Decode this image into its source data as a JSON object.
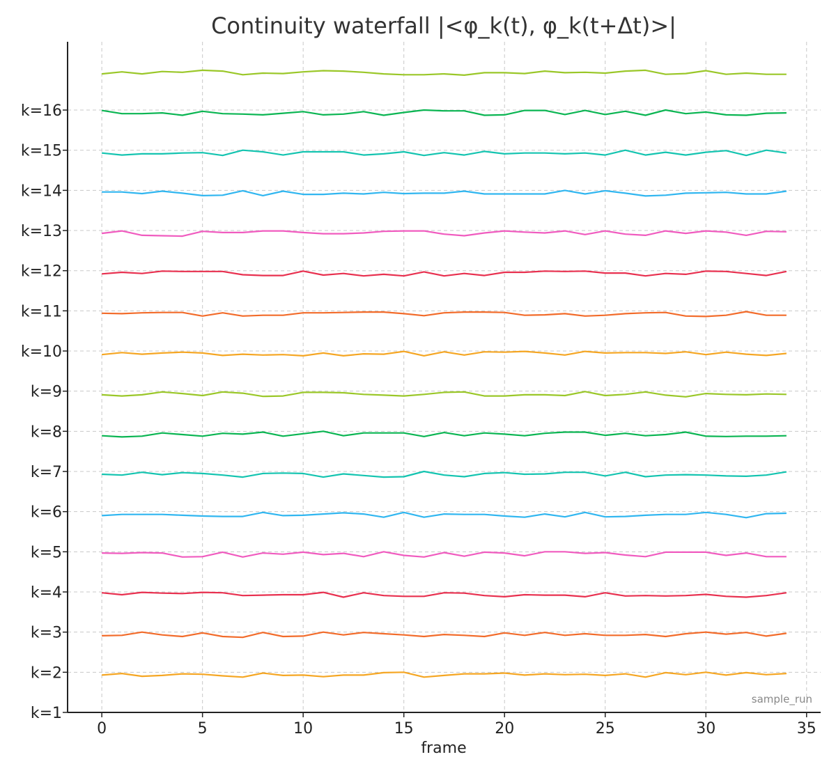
{
  "chart_data": {
    "type": "line",
    "title": "Continuity waterfall |<φ_k(t), φ_k(t+Δt)>|",
    "xlabel": "frame",
    "ylabel": "",
    "xlim": [
      -1.7,
      35.7
    ],
    "ylim": [
      1,
      17.7
    ],
    "x_ticks": [
      0,
      5,
      10,
      15,
      20,
      25,
      30,
      35
    ],
    "x_tick_labels": [
      "0",
      "5",
      "10",
      "15",
      "20",
      "25",
      "30",
      "35"
    ],
    "y_ticks": [
      1,
      2,
      3,
      4,
      5,
      6,
      7,
      8,
      9,
      10,
      11,
      12,
      13,
      14,
      15,
      16
    ],
    "y_tick_labels": [
      "k=1",
      "k=2",
      "k=3",
      "k=4",
      "k=5",
      "k=6",
      "k=7",
      "k=8",
      "k=9",
      "k=10",
      "k=11",
      "k=12",
      "k=13",
      "k=14",
      "k=15",
      "k=16"
    ],
    "grid": true,
    "annotation": "sample_run",
    "x": [
      0,
      1,
      2,
      3,
      4,
      5,
      6,
      7,
      8,
      9,
      10,
      11,
      12,
      13,
      14,
      15,
      16,
      17,
      18,
      19,
      20,
      21,
      22,
      23,
      24,
      25,
      26,
      27,
      28,
      29,
      30,
      31,
      32,
      33,
      34
    ],
    "series": [
      {
        "color": "#f5a623",
        "values": [
          1.93,
          1.97,
          1.9,
          1.92,
          1.96,
          1.95,
          1.91,
          1.88,
          1.98,
          1.92,
          1.93,
          1.89,
          1.93,
          1.93,
          1.99,
          2.0,
          1.88,
          1.92,
          1.96,
          1.96,
          1.98,
          1.93,
          1.96,
          1.94,
          1.95,
          1.92,
          1.96,
          1.88,
          1.99,
          1.94,
          2.0,
          1.93,
          1.99,
          1.94,
          1.97
        ]
      },
      {
        "color": "#f26b2a",
        "values": [
          2.91,
          2.92,
          3.0,
          2.93,
          2.89,
          2.98,
          2.89,
          2.87,
          2.99,
          2.89,
          2.9,
          3.0,
          2.93,
          2.99,
          2.96,
          2.93,
          2.89,
          2.94,
          2.92,
          2.89,
          2.98,
          2.92,
          2.99,
          2.92,
          2.96,
          2.92,
          2.92,
          2.94,
          2.89,
          2.96,
          3.0,
          2.95,
          2.99,
          2.9,
          2.97
        ]
      },
      {
        "color": "#e8304f",
        "values": [
          3.98,
          3.93,
          3.99,
          3.97,
          3.96,
          3.99,
          3.98,
          3.91,
          3.92,
          3.93,
          3.93,
          3.99,
          3.87,
          3.98,
          3.91,
          3.89,
          3.89,
          3.98,
          3.97,
          3.91,
          3.88,
          3.93,
          3.92,
          3.92,
          3.88,
          3.98,
          3.9,
          3.91,
          3.9,
          3.91,
          3.94,
          3.89,
          3.87,
          3.91,
          3.98
        ]
      },
      {
        "color": "#f05bbf",
        "values": [
          4.97,
          4.96,
          4.98,
          4.97,
          4.87,
          4.88,
          4.99,
          4.87,
          4.97,
          4.94,
          4.99,
          4.93,
          4.96,
          4.88,
          5.0,
          4.91,
          4.87,
          4.98,
          4.89,
          4.99,
          4.97,
          4.9,
          5.0,
          5.0,
          4.96,
          4.98,
          4.92,
          4.88,
          4.99,
          4.99,
          4.99,
          4.91,
          4.97,
          4.88,
          4.88
        ]
      },
      {
        "color": "#30b6f0",
        "values": [
          5.9,
          5.93,
          5.93,
          5.93,
          5.91,
          5.89,
          5.88,
          5.88,
          5.98,
          5.9,
          5.91,
          5.94,
          5.97,
          5.94,
          5.86,
          5.98,
          5.86,
          5.94,
          5.93,
          5.93,
          5.89,
          5.86,
          5.94,
          5.87,
          5.98,
          5.87,
          5.88,
          5.91,
          5.93,
          5.93,
          5.98,
          5.93,
          5.85,
          5.95,
          5.96
        ]
      },
      {
        "color": "#14c4b0",
        "values": [
          6.93,
          6.91,
          6.98,
          6.92,
          6.97,
          6.95,
          6.91,
          6.86,
          6.95,
          6.96,
          6.95,
          6.86,
          6.94,
          6.9,
          6.86,
          6.87,
          7.0,
          6.91,
          6.87,
          6.95,
          6.97,
          6.93,
          6.94,
          6.98,
          6.98,
          6.89,
          6.98,
          6.87,
          6.91,
          6.92,
          6.91,
          6.89,
          6.88,
          6.91,
          6.99
        ]
      },
      {
        "color": "#0ab552",
        "values": [
          7.89,
          7.86,
          7.88,
          7.96,
          7.92,
          7.88,
          7.95,
          7.93,
          7.98,
          7.88,
          7.94,
          8.0,
          7.89,
          7.96,
          7.96,
          7.96,
          7.87,
          7.97,
          7.89,
          7.96,
          7.93,
          7.89,
          7.95,
          7.98,
          7.98,
          7.9,
          7.95,
          7.89,
          7.92,
          7.98,
          7.88,
          7.87,
          7.88,
          7.88,
          7.89
        ]
      },
      {
        "color": "#9ac728",
        "values": [
          8.91,
          8.88,
          8.91,
          8.98,
          8.94,
          8.89,
          8.98,
          8.95,
          8.87,
          8.88,
          8.97,
          8.97,
          8.96,
          8.92,
          8.9,
          8.88,
          8.92,
          8.97,
          8.98,
          8.88,
          8.88,
          8.91,
          8.91,
          8.89,
          8.99,
          8.89,
          8.92,
          8.98,
          8.9,
          8.86,
          8.94,
          8.92,
          8.91,
          8.93,
          8.92
        ]
      },
      {
        "color": "#f5a623",
        "values": [
          9.91,
          9.96,
          9.92,
          9.95,
          9.97,
          9.95,
          9.89,
          9.92,
          9.9,
          9.91,
          9.88,
          9.95,
          9.88,
          9.93,
          9.92,
          9.99,
          9.88,
          9.98,
          9.9,
          9.98,
          9.97,
          9.99,
          9.95,
          9.9,
          9.99,
          9.95,
          9.96,
          9.96,
          9.94,
          9.98,
          9.91,
          9.97,
          9.92,
          9.89,
          9.94
        ]
      },
      {
        "color": "#f26b2a",
        "values": [
          10.94,
          10.93,
          10.95,
          10.96,
          10.96,
          10.87,
          10.95,
          10.87,
          10.89,
          10.89,
          10.95,
          10.95,
          10.96,
          10.97,
          10.97,
          10.93,
          10.88,
          10.95,
          10.97,
          10.97,
          10.96,
          10.89,
          10.9,
          10.93,
          10.87,
          10.89,
          10.93,
          10.95,
          10.96,
          10.87,
          10.86,
          10.89,
          10.98,
          10.89,
          10.89
        ]
      },
      {
        "color": "#e8304f",
        "values": [
          11.92,
          11.96,
          11.93,
          11.99,
          11.98,
          11.98,
          11.98,
          11.9,
          11.88,
          11.88,
          11.99,
          11.89,
          11.93,
          11.87,
          11.91,
          11.87,
          11.97,
          11.87,
          11.93,
          11.88,
          11.96,
          11.96,
          11.99,
          11.98,
          11.99,
          11.94,
          11.94,
          11.87,
          11.93,
          11.91,
          11.99,
          11.98,
          11.93,
          11.88,
          11.98
        ]
      },
      {
        "color": "#f05bbf",
        "values": [
          12.93,
          12.99,
          12.88,
          12.87,
          12.86,
          12.98,
          12.95,
          12.95,
          12.99,
          12.99,
          12.95,
          12.92,
          12.92,
          12.94,
          12.98,
          12.99,
          12.99,
          12.91,
          12.87,
          12.94,
          12.99,
          12.96,
          12.94,
          12.99,
          12.9,
          12.99,
          12.91,
          12.88,
          12.99,
          12.93,
          12.99,
          12.96,
          12.88,
          12.98,
          12.97
        ]
      },
      {
        "color": "#30b6f0",
        "values": [
          13.96,
          13.96,
          13.92,
          13.98,
          13.93,
          13.87,
          13.88,
          13.99,
          13.87,
          13.98,
          13.9,
          13.9,
          13.93,
          13.91,
          13.95,
          13.92,
          13.93,
          13.93,
          13.98,
          13.91,
          13.91,
          13.91,
          13.91,
          14.0,
          13.91,
          13.99,
          13.93,
          13.86,
          13.88,
          13.93,
          13.94,
          13.95,
          13.91,
          13.91,
          13.98
        ]
      },
      {
        "color": "#14c4b0",
        "values": [
          14.93,
          14.88,
          14.91,
          14.91,
          14.93,
          14.94,
          14.87,
          15.0,
          14.96,
          14.88,
          14.96,
          14.96,
          14.96,
          14.88,
          14.91,
          14.96,
          14.87,
          14.94,
          14.88,
          14.97,
          14.91,
          14.93,
          14.93,
          14.91,
          14.93,
          14.88,
          15.0,
          14.88,
          14.95,
          14.88,
          14.95,
          14.99,
          14.87,
          15.0,
          14.93
        ]
      },
      {
        "color": "#0ab552",
        "values": [
          15.99,
          15.91,
          15.91,
          15.93,
          15.87,
          15.97,
          15.91,
          15.9,
          15.88,
          15.92,
          15.96,
          15.88,
          15.9,
          15.96,
          15.87,
          15.94,
          16.0,
          15.98,
          15.98,
          15.87,
          15.88,
          15.99,
          15.99,
          15.89,
          15.99,
          15.89,
          15.97,
          15.87,
          16.0,
          15.91,
          15.95,
          15.88,
          15.87,
          15.92,
          15.93
        ]
      },
      {
        "color": "#9ac728",
        "values": [
          16.9,
          16.95,
          16.9,
          16.96,
          16.94,
          16.99,
          16.97,
          16.88,
          16.92,
          16.91,
          16.95,
          16.98,
          16.97,
          16.94,
          16.9,
          16.88,
          16.88,
          16.9,
          16.87,
          16.93,
          16.93,
          16.91,
          16.97,
          16.93,
          16.94,
          16.92,
          16.97,
          16.99,
          16.89,
          16.91,
          16.98,
          16.89,
          16.92,
          16.89,
          16.89
        ]
      }
    ]
  }
}
